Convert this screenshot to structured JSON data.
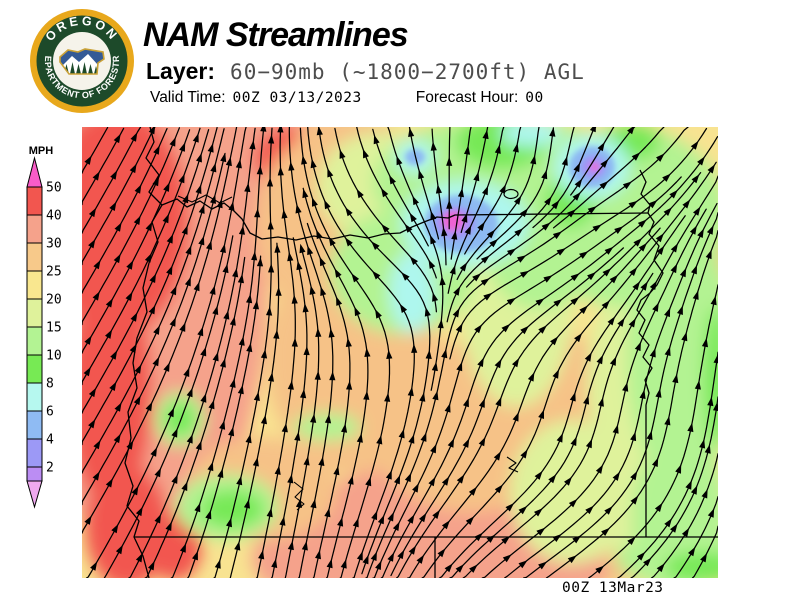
{
  "header": {
    "title": "NAM Streamlines",
    "layer_label": "Layer:",
    "layer_value": "60−90mb (~1800−2700ft) AGL",
    "valid_time_label": "Valid Time:",
    "valid_time_value": "00Z 03/13/2023",
    "forecast_hour_label": "Forecast Hour:",
    "forecast_hour_value": "00"
  },
  "logo": {
    "arc_top": "OREGON",
    "arc_bottom": "DEPARTMENT OF FORESTRY"
  },
  "legend": {
    "units_label": "MPH",
    "tick_labels": [
      "50",
      "40",
      "30",
      "25",
      "20",
      "15",
      "10",
      "8",
      "6",
      "4",
      "2"
    ],
    "segment_colors": [
      "#f2564f",
      "#f5a28b",
      "#f7c98a",
      "#f9e78f",
      "#dff29b",
      "#b3f393",
      "#77ea54",
      "#b6f8ef",
      "#8fbbf3",
      "#9c99f6"
    ],
    "below_min_color": "#bb8df3",
    "arrow_top_color": "#f85cc8",
    "arrow_bottom_color": "#efa9ef"
  },
  "map": {
    "timestamp": "00Z 13Mar23",
    "speed_colors": {
      "red": "#f2564f",
      "salmon": "#f5a28b",
      "orange": "#f6c287",
      "yellow": "#f8e391",
      "pale_green": "#dff29b",
      "light_green": "#b3f392",
      "green": "#77e956",
      "cyan": "#aef7ee",
      "light_blue": "#8db9f2",
      "periwinkle": "#9b98f5",
      "purple": "#b78cf3",
      "magenta": "#ee62d2"
    }
  }
}
